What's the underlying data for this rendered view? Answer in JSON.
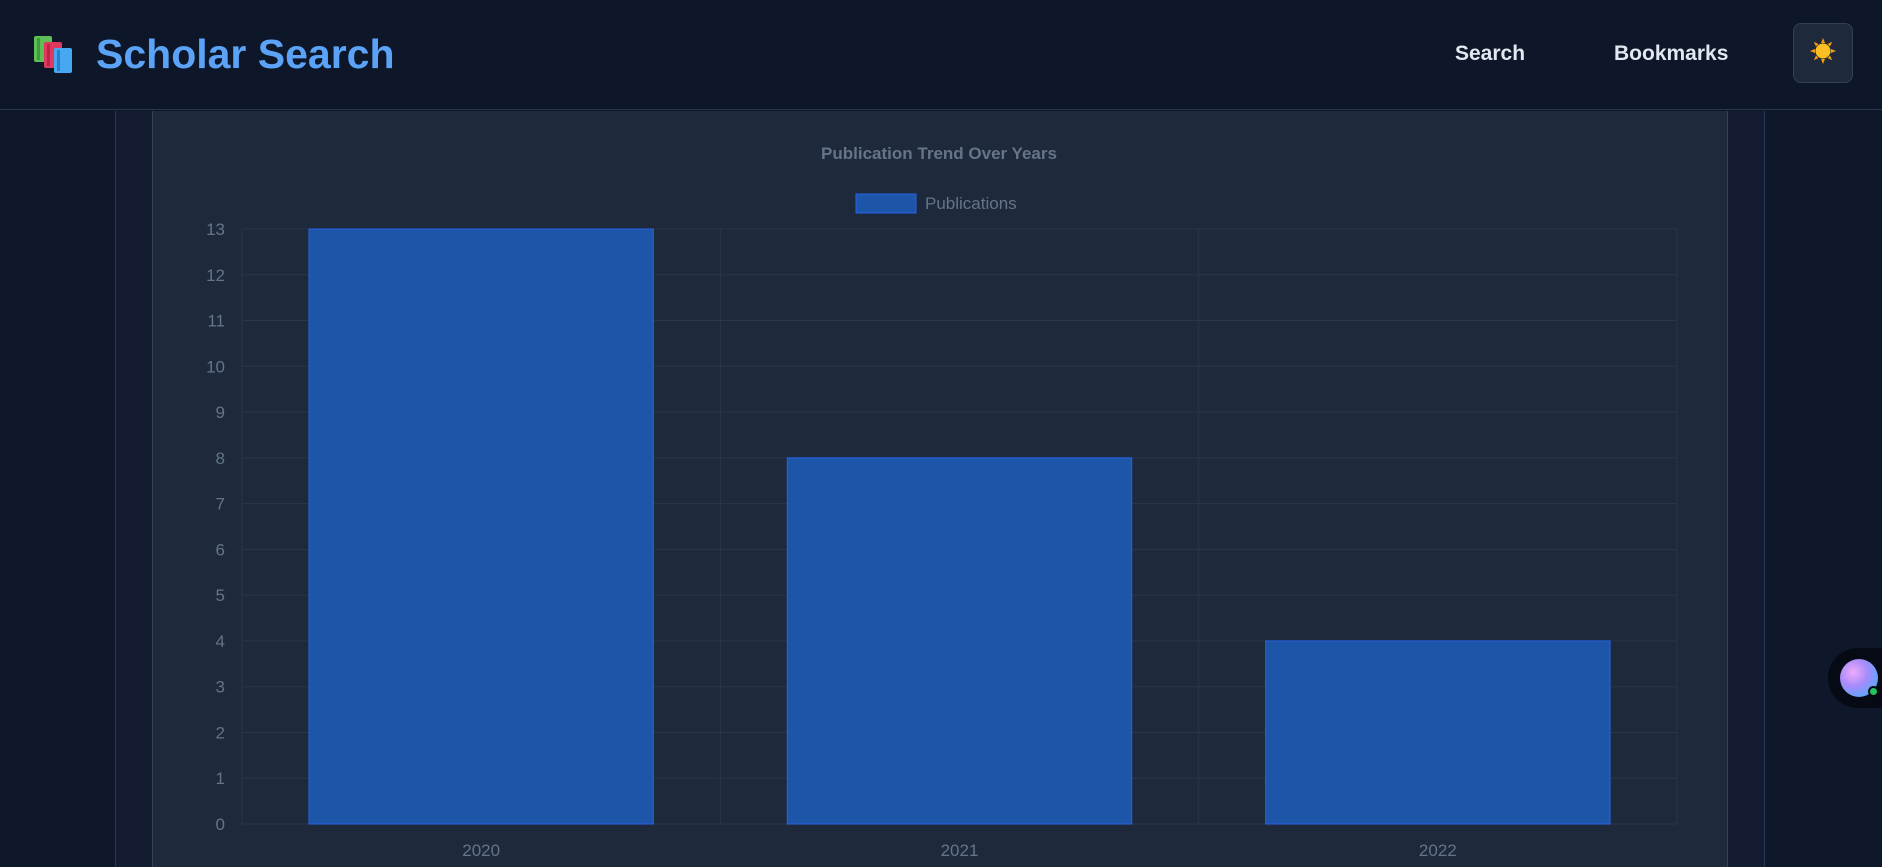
{
  "header": {
    "title": "Scholar Search",
    "nav": {
      "search_label": "Search",
      "bookmarks_label": "Bookmarks"
    },
    "theme_icon": "sun-icon"
  },
  "colors": {
    "accent": "#5aa3f7",
    "bar_fill": "#1d56a8",
    "bar_border": "#2563eb",
    "background": "#0f172a",
    "card": "#1e293b"
  },
  "chart_data": {
    "type": "bar",
    "title": "Publication Trend Over Years",
    "categories": [
      "2020",
      "2021",
      "2022"
    ],
    "series": [
      {
        "name": "Publications",
        "values": [
          13,
          8,
          4
        ]
      }
    ],
    "ylim": [
      0,
      13
    ],
    "yticks": [
      0,
      1,
      2,
      3,
      4,
      5,
      6,
      7,
      8,
      9,
      10,
      11,
      12,
      13
    ],
    "xlabel": "",
    "ylabel": "",
    "grid": true,
    "legend": "top-center"
  }
}
